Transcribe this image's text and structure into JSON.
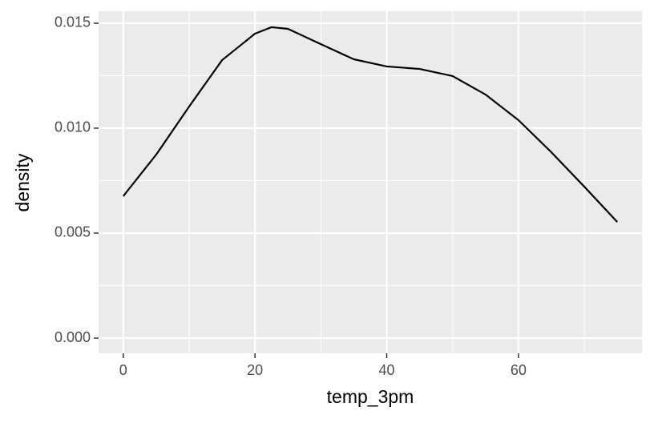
{
  "chart_data": {
    "type": "line",
    "x_label": "temp_3pm",
    "y_label": "density",
    "x": [
      0,
      5,
      10,
      15,
      20,
      22.5,
      25,
      30,
      35,
      40,
      45,
      50,
      55,
      60,
      65,
      70,
      75
    ],
    "series": [
      {
        "color": "#000000",
        "values": [
          0.00676,
          0.00874,
          0.01103,
          0.01324,
          0.0145,
          0.01481,
          0.01473,
          0.014,
          0.01328,
          0.01294,
          0.01282,
          0.01248,
          0.0116,
          0.01038,
          0.00885,
          0.00721,
          0.00553
        ]
      }
    ],
    "xlim": [
      -3.75,
      78.75
    ],
    "ylim": [
      -0.000725,
      0.01557
    ],
    "xticks": [
      0,
      20,
      40,
      60
    ],
    "yticks": [
      {
        "value": 0,
        "label": "0.000"
      },
      {
        "value": 0.005,
        "label": "0.005"
      },
      {
        "value": 0.01,
        "label": "0.010"
      },
      {
        "value": 0.015,
        "label": "0.015"
      }
    ],
    "minor_xticks": [
      10,
      30,
      50,
      70
    ],
    "minor_yticks": [
      0.0025,
      0.0075,
      0.0125
    ],
    "grid": true,
    "panel_color": "#ebebeb"
  }
}
